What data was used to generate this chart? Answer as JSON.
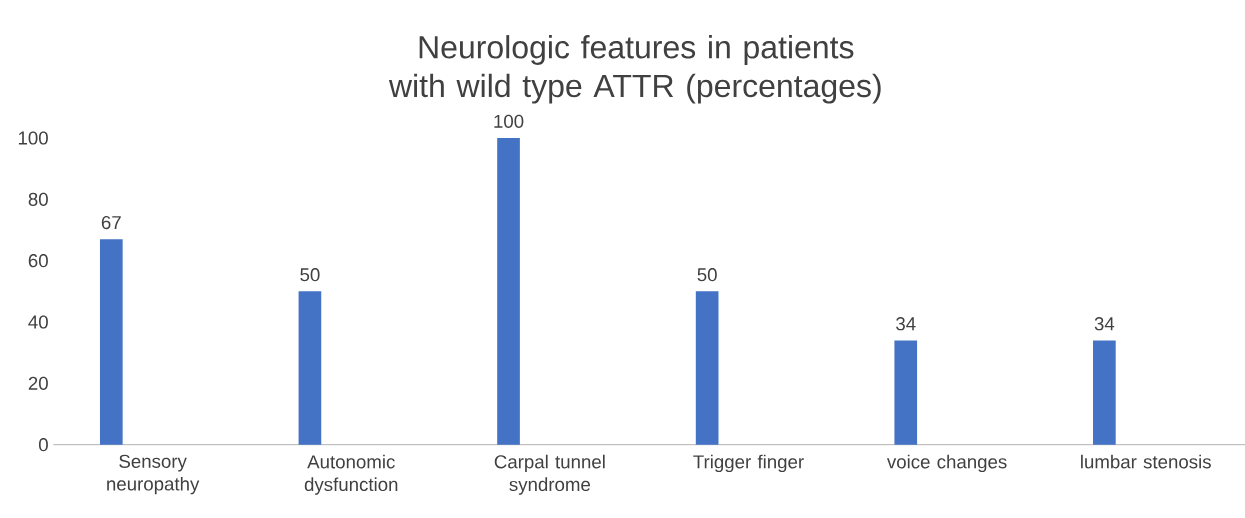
{
  "chart_data": {
    "type": "bar",
    "title": "Neurologic features in patients with wild type ATTR (percentages)",
    "categories": [
      "Sensory neuropathy",
      "Autonomic dysfunction",
      "Carpal tunnel syndrome",
      "Trigger finger",
      "voice changes",
      "lumbar stenosis"
    ],
    "values": [
      67,
      50,
      100,
      50,
      34,
      34
    ],
    "color": "#4472c4",
    "ylim": [
      0,
      100
    ],
    "yticks": [
      0,
      20,
      40,
      60,
      80,
      100
    ],
    "data_labels": true
  }
}
